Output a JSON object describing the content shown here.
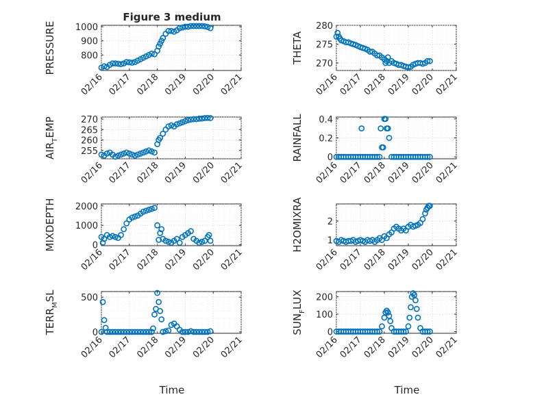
{
  "figure": {
    "title": "Figure 3 medium",
    "xlabel": "Time"
  },
  "chart_data": [
    {
      "type": "scatter",
      "ylabel": "PRESSURE",
      "ylim": [
        690,
        1010
      ],
      "yticks": [
        800,
        900,
        1000
      ],
      "x": [
        0.0,
        0.1,
        0.2,
        0.3,
        0.4,
        0.5,
        0.6,
        0.7,
        0.8,
        0.9,
        1.0,
        1.1,
        1.2,
        1.3,
        1.4,
        1.5,
        1.6,
        1.7,
        1.8,
        1.9,
        2.0,
        2.05,
        2.1,
        2.15,
        2.2,
        2.3,
        2.4,
        2.5,
        2.6,
        2.7,
        2.8,
        2.9,
        3.0,
        3.1,
        3.2,
        3.3,
        3.4,
        3.5,
        3.6,
        3.7,
        3.8,
        3.9
      ],
      "y": [
        710,
        720,
        715,
        730,
        740,
        740,
        738,
        735,
        740,
        750,
        748,
        745,
        750,
        760,
        770,
        780,
        790,
        800,
        810,
        805,
        830,
        860,
        880,
        900,
        920,
        950,
        970,
        970,
        965,
        975,
        990,
        995,
        1000,
        1000,
        1005,
        1005,
        1005,
        1005,
        1005,
        1003,
        998,
        990
      ]
    },
    {
      "type": "scatter",
      "ylabel": "THETA",
      "ylim": [
        268,
        280
      ],
      "yticks": [
        270,
        275,
        280
      ],
      "x": [
        0.0,
        0.05,
        0.1,
        0.15,
        0.2,
        0.3,
        0.4,
        0.5,
        0.6,
        0.7,
        0.8,
        0.9,
        1.0,
        1.1,
        1.2,
        1.3,
        1.4,
        1.5,
        1.6,
        1.7,
        1.8,
        1.9,
        2.0,
        2.05,
        2.1,
        2.15,
        2.2,
        2.3,
        2.4,
        2.5,
        2.6,
        2.7,
        2.8,
        2.9,
        3.0,
        3.1,
        3.2,
        3.3,
        3.4,
        3.5,
        3.6,
        3.7,
        3.8,
        3.9
      ],
      "y": [
        277,
        278,
        277,
        276.5,
        276,
        275.8,
        275.5,
        275.5,
        275.2,
        275,
        274.8,
        274.5,
        274.2,
        274,
        273.8,
        273.5,
        273,
        273,
        272.5,
        272,
        272,
        271.5,
        271,
        270,
        270.5,
        271.5,
        270,
        270.5,
        270,
        269.8,
        269.5,
        269.5,
        269.2,
        269,
        268.8,
        269,
        269.5,
        269.8,
        270,
        270,
        269.8,
        270,
        270.5,
        270.5
      ]
    },
    {
      "type": "scatter",
      "ylabel": "AIR_TEMP",
      "ylim": [
        251,
        271
      ],
      "yticks": [
        255,
        260,
        265,
        270
      ],
      "x": [
        0.0,
        0.1,
        0.2,
        0.3,
        0.4,
        0.5,
        0.6,
        0.7,
        0.8,
        0.9,
        1.0,
        1.1,
        1.2,
        1.3,
        1.4,
        1.5,
        1.6,
        1.7,
        1.8,
        1.9,
        2.0,
        2.05,
        2.1,
        2.2,
        2.3,
        2.4,
        2.5,
        2.6,
        2.7,
        2.8,
        2.9,
        3.0,
        3.1,
        3.2,
        3.3,
        3.4,
        3.5,
        3.6,
        3.7,
        3.8,
        3.9
      ],
      "y": [
        253,
        252.5,
        253.5,
        254,
        253,
        252,
        252.5,
        253,
        253.5,
        254,
        253.5,
        253,
        252.5,
        253,
        253.5,
        254,
        254.5,
        255,
        254.5,
        254,
        258,
        260,
        261,
        263,
        265,
        266.5,
        267,
        266.5,
        267.5,
        268,
        268.5,
        269,
        269.5,
        269.8,
        270,
        270,
        270.2,
        270.3,
        270.5,
        270.6,
        270.5
      ]
    },
    {
      "type": "scatter",
      "ylabel": "RAINFALL",
      "ylim": [
        -0.02,
        0.42
      ],
      "yticks": [
        0,
        0.2,
        0.4
      ],
      "x": [
        0.0,
        0.1,
        0.2,
        0.3,
        0.4,
        0.5,
        0.6,
        0.7,
        0.8,
        0.9,
        1.0,
        1.05,
        1.1,
        1.2,
        1.3,
        1.4,
        1.5,
        1.6,
        1.7,
        1.8,
        1.85,
        1.9,
        1.95,
        2.0,
        2.05,
        2.1,
        2.15,
        2.2,
        2.3,
        2.4,
        2.5,
        2.6,
        2.7,
        2.8,
        2.9,
        3.0,
        3.1,
        3.2,
        3.3,
        3.4,
        3.5,
        3.6,
        3.7,
        3.8,
        3.9
      ],
      "y": [
        0,
        0,
        0,
        0,
        0,
        0,
        0,
        0,
        0,
        0,
        0,
        0.3,
        0,
        0,
        0,
        0,
        0,
        0,
        0,
        0,
        0.3,
        0.1,
        0.1,
        0.4,
        0.4,
        0.3,
        0.3,
        0.2,
        0,
        0,
        0,
        0,
        0,
        0,
        0,
        0,
        0,
        0,
        0,
        0,
        0,
        0,
        0,
        0,
        0
      ]
    },
    {
      "type": "scatter",
      "ylabel": "MIXDEPTH",
      "ylim": [
        -50,
        2100
      ],
      "yticks": [
        0,
        1000,
        2000
      ],
      "x": [
        0.0,
        0.05,
        0.1,
        0.2,
        0.3,
        0.4,
        0.5,
        0.6,
        0.7,
        0.8,
        0.9,
        1.0,
        1.1,
        1.2,
        1.3,
        1.4,
        1.5,
        1.6,
        1.7,
        1.8,
        1.9,
        2.0,
        2.05,
        2.1,
        2.15,
        2.2,
        2.3,
        2.4,
        2.5,
        2.6,
        2.7,
        2.8,
        2.9,
        3.0,
        3.1,
        3.2,
        3.3,
        3.4,
        3.5,
        3.6,
        3.7,
        3.8,
        3.85,
        3.9
      ],
      "y": [
        400,
        100,
        300,
        500,
        400,
        450,
        400,
        350,
        500,
        800,
        1100,
        1300,
        1400,
        1450,
        1500,
        1600,
        1700,
        1750,
        1800,
        1850,
        1900,
        1000,
        250,
        600,
        800,
        300,
        200,
        150,
        100,
        200,
        300,
        100,
        400,
        500,
        600,
        700,
        300,
        200,
        100,
        150,
        200,
        400,
        500,
        200
      ]
    },
    {
      "type": "scatter",
      "ylabel": "H2OMIXRA",
      "ylim": [
        0.7,
        2.9
      ],
      "yticks": [
        1,
        2
      ],
      "x": [
        0.0,
        0.1,
        0.2,
        0.3,
        0.4,
        0.5,
        0.6,
        0.7,
        0.8,
        0.9,
        1.0,
        1.1,
        1.2,
        1.3,
        1.4,
        1.5,
        1.6,
        1.7,
        1.8,
        1.9,
        2.0,
        2.1,
        2.2,
        2.3,
        2.4,
        2.5,
        2.6,
        2.7,
        2.8,
        2.9,
        3.0,
        3.1,
        3.2,
        3.3,
        3.4,
        3.5,
        3.6,
        3.7,
        3.75,
        3.8,
        3.85,
        3.9
      ],
      "y": [
        0.95,
        0.9,
        1.0,
        0.95,
        0.9,
        0.95,
        0.95,
        1.0,
        0.9,
        0.95,
        1.0,
        0.95,
        0.9,
        1.0,
        0.95,
        1.0,
        0.9,
        1.0,
        1.1,
        1.0,
        1.2,
        1.1,
        1.3,
        1.4,
        1.6,
        1.7,
        1.6,
        1.5,
        1.6,
        1.5,
        1.7,
        1.8,
        1.7,
        1.75,
        1.8,
        1.9,
        2.1,
        2.4,
        2.6,
        2.7,
        2.8,
        2.8
      ]
    },
    {
      "type": "scatter",
      "ylabel": "TERR_MSL",
      "ylim": [
        -20,
        580
      ],
      "yticks": [
        0,
        500
      ],
      "x": [
        0.0,
        0.05,
        0.1,
        0.15,
        0.2,
        0.3,
        0.4,
        0.5,
        0.6,
        0.7,
        0.8,
        0.9,
        1.0,
        1.1,
        1.2,
        1.3,
        1.4,
        1.5,
        1.6,
        1.7,
        1.8,
        1.85,
        1.9,
        1.95,
        2.0,
        2.05,
        2.1,
        2.15,
        2.2,
        2.3,
        2.4,
        2.5,
        2.6,
        2.7,
        2.8,
        2.9,
        3.0,
        3.1,
        3.2,
        3.3,
        3.4,
        3.5,
        3.6,
        3.7,
        3.8,
        3.9
      ],
      "y": [
        0,
        430,
        170,
        60,
        0,
        0,
        0,
        0,
        0,
        0,
        0,
        0,
        0,
        0,
        0,
        0,
        0,
        0,
        0,
        0,
        0,
        50,
        250,
        330,
        560,
        430,
        300,
        180,
        0,
        10,
        20,
        100,
        120,
        80,
        30,
        0,
        0,
        0,
        10,
        0,
        0,
        0,
        0,
        0,
        0,
        10
      ]
    },
    {
      "type": "scatter",
      "ylabel": "SUN_FLUX",
      "ylim": [
        -10,
        230
      ],
      "yticks": [
        0,
        100,
        200
      ],
      "x": [
        0.0,
        0.1,
        0.2,
        0.3,
        0.4,
        0.5,
        0.6,
        0.7,
        0.8,
        0.9,
        1.0,
        1.1,
        1.2,
        1.3,
        1.4,
        1.5,
        1.6,
        1.7,
        1.8,
        1.9,
        2.0,
        2.05,
        2.1,
        2.15,
        2.2,
        2.25,
        2.3,
        2.4,
        2.5,
        2.6,
        2.7,
        2.8,
        2.9,
        3.0,
        3.05,
        3.1,
        3.15,
        3.2,
        3.25,
        3.3,
        3.35,
        3.4,
        3.5,
        3.6,
        3.7,
        3.8,
        3.9
      ],
      "y": [
        0,
        0,
        0,
        0,
        0,
        0,
        0,
        0,
        0,
        0,
        0,
        0,
        0,
        0,
        0,
        0,
        0,
        0,
        0,
        30,
        80,
        110,
        120,
        110,
        90,
        60,
        20,
        0,
        0,
        0,
        0,
        0,
        0,
        30,
        80,
        140,
        200,
        220,
        210,
        180,
        130,
        80,
        20,
        0,
        0,
        0,
        0
      ]
    }
  ],
  "xaxis": {
    "range": [
      0,
      5
    ],
    "ticklabels": [
      "02/16",
      "02/17",
      "02/18",
      "02/19",
      "02/20",
      "02/21"
    ]
  }
}
